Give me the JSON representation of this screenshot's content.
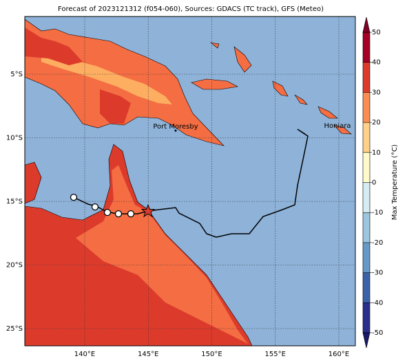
{
  "map": {
    "title": "Forecast of 2023121312 (f054-060), Sources: GDACS (TC track), GFS (Meteo)",
    "lon_ticks": [
      {
        "value": 140,
        "label": "140°E"
      },
      {
        "value": 145,
        "label": "145°E"
      },
      {
        "value": 150,
        "label": "150°E"
      },
      {
        "value": 155,
        "label": "155°E"
      },
      {
        "value": 160,
        "label": "160°E"
      }
    ],
    "lat_ticks": [
      {
        "value": -5,
        "label": "5°S"
      },
      {
        "value": -10,
        "label": "10°S"
      },
      {
        "value": -15,
        "label": "15°S"
      },
      {
        "value": -20,
        "label": "20°S"
      },
      {
        "value": -25,
        "label": "25°S"
      }
    ],
    "places": [
      "Port Moresby",
      "Honiara"
    ],
    "colorbar": {
      "label": "Max Temperature (°C)",
      "ticks": [
        -50,
        -40,
        -30,
        -20,
        -10,
        0,
        10,
        20,
        30,
        40,
        50
      ],
      "colors": [
        "#2b2f8c",
        "#3b62a9",
        "#6699c7",
        "#9cc6df",
        "#d5ecf3",
        "#fffac9",
        "#fed08a",
        "#f98e52",
        "#dc3b2c",
        "#a50026"
      ],
      "under_color": "#1a1a6a",
      "over_color": "#7f0026"
    }
  }
}
